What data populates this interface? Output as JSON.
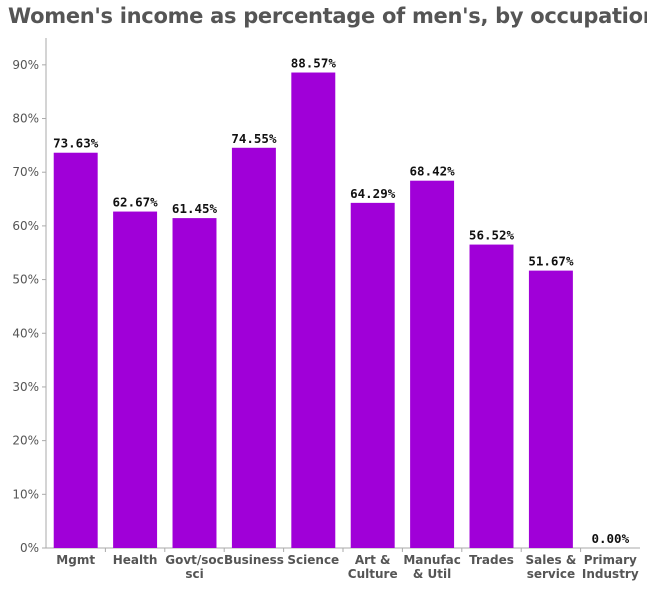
{
  "chart_data": {
    "type": "bar",
    "title": "Women's income as percentage of men's, by occupation",
    "categories": [
      [
        "Mgmt"
      ],
      [
        "Health"
      ],
      [
        "Govt/soc",
        "sci"
      ],
      [
        "Business"
      ],
      [
        "Science"
      ],
      [
        "Art &",
        "Culture"
      ],
      [
        "Manufac",
        "& Util"
      ],
      [
        "Trades"
      ],
      [
        "Sales &",
        "service"
      ],
      [
        "Primary",
        "Industry"
      ]
    ],
    "values": [
      73.63,
      62.67,
      61.45,
      74.55,
      88.57,
      64.29,
      68.42,
      56.52,
      51.67,
      0.0
    ],
    "data_labels": [
      "73.63%",
      "62.67%",
      "61.45%",
      "74.55%",
      "88.57%",
      "64.29%",
      "68.42%",
      "56.52%",
      "51.67%",
      "0.00%"
    ],
    "ylim": [
      0,
      95
    ],
    "yticks": [
      0,
      10,
      20,
      30,
      40,
      50,
      60,
      70,
      80,
      90
    ],
    "ytick_labels": [
      "0%",
      "10%",
      "20%",
      "30%",
      "40%",
      "50%",
      "60%",
      "70%",
      "80%",
      "90%"
    ],
    "grid": false,
    "legend": "none",
    "colors": {
      "bar": "#a000d8",
      "axis": "#aaaaaa",
      "text": "#555555"
    }
  }
}
